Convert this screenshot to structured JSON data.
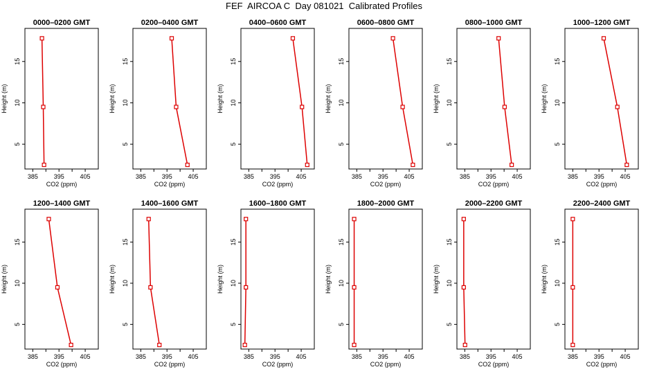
{
  "title": "FEF  AIRCOA C  Day 081021  Calibrated Profiles",
  "colors": {
    "series": "#dd0000",
    "axis": "#000000"
  },
  "chart_data": [
    {
      "type": "line",
      "title": "0000–0200 GMT",
      "xlabel": "CO2 (ppm)",
      "ylabel": "Height (m)",
      "xlim": [
        382,
        410
      ],
      "ylim": [
        2,
        19
      ],
      "xticks": [
        385,
        395,
        405
      ],
      "yticks": [
        5,
        10,
        15
      ],
      "x": [
        388.5,
        389.0,
        389.3
      ],
      "y": [
        17.8,
        9.5,
        2.5
      ]
    },
    {
      "type": "line",
      "title": "0200–0400 GMT",
      "xlabel": "CO2 (ppm)",
      "ylabel": "Height (m)",
      "xlim": [
        382,
        410
      ],
      "ylim": [
        2,
        19
      ],
      "xticks": [
        385,
        395,
        405
      ],
      "yticks": [
        5,
        10,
        15
      ],
      "x": [
        396.8,
        398.5,
        402.8
      ],
      "y": [
        17.8,
        9.5,
        2.5
      ]
    },
    {
      "type": "line",
      "title": "0400–0600 GMT",
      "xlabel": "CO2 (ppm)",
      "ylabel": "Height (m)",
      "xlim": [
        382,
        410
      ],
      "ylim": [
        2,
        19
      ],
      "xticks": [
        385,
        395,
        405
      ],
      "yticks": [
        5,
        10,
        15
      ],
      "x": [
        401.8,
        405.3,
        407.3
      ],
      "y": [
        17.8,
        9.5,
        2.5
      ]
    },
    {
      "type": "line",
      "title": "0600–0800 GMT",
      "xlabel": "CO2 (ppm)",
      "ylabel": "Height (m)",
      "xlim": [
        382,
        410
      ],
      "ylim": [
        2,
        19
      ],
      "xticks": [
        385,
        395,
        405
      ],
      "yticks": [
        5,
        10,
        15
      ],
      "x": [
        398.8,
        402.5,
        406.4
      ],
      "y": [
        17.8,
        9.5,
        2.5
      ]
    },
    {
      "type": "line",
      "title": "0800–1000 GMT",
      "xlabel": "CO2 (ppm)",
      "ylabel": "Height (m)",
      "xlim": [
        382,
        410
      ],
      "ylim": [
        2,
        19
      ],
      "xticks": [
        385,
        395,
        405
      ],
      "yticks": [
        5,
        10,
        15
      ],
      "x": [
        397.9,
        400.2,
        402.9
      ],
      "y": [
        17.8,
        9.5,
        2.5
      ]
    },
    {
      "type": "line",
      "title": "1000–1200 GMT",
      "xlabel": "CO2 (ppm)",
      "ylabel": "Height (m)",
      "xlim": [
        382,
        410
      ],
      "ylim": [
        2,
        19
      ],
      "xticks": [
        385,
        395,
        405
      ],
      "yticks": [
        5,
        10,
        15
      ],
      "x": [
        396.8,
        402.0,
        405.6
      ],
      "y": [
        17.8,
        9.5,
        2.5
      ]
    },
    {
      "type": "line",
      "title": "1200–1400 GMT",
      "xlabel": "CO2 (ppm)",
      "ylabel": "Height (m)",
      "xlim": [
        382,
        410
      ],
      "ylim": [
        2,
        19
      ],
      "xticks": [
        385,
        395,
        405
      ],
      "yticks": [
        5,
        10,
        15
      ],
      "x": [
        391.1,
        394.4,
        399.6
      ],
      "y": [
        17.8,
        9.5,
        2.5
      ]
    },
    {
      "type": "line",
      "title": "1400–1600 GMT",
      "xlabel": "CO2 (ppm)",
      "ylabel": "Height (m)",
      "xlim": [
        382,
        410
      ],
      "ylim": [
        2,
        19
      ],
      "xticks": [
        385,
        395,
        405
      ],
      "yticks": [
        5,
        10,
        15
      ],
      "x": [
        388.0,
        388.7,
        392.1
      ],
      "y": [
        17.8,
        9.5,
        2.5
      ]
    },
    {
      "type": "line",
      "title": "1600–1800 GMT",
      "xlabel": "CO2 (ppm)",
      "ylabel": "Height (m)",
      "xlim": [
        382,
        410
      ],
      "ylim": [
        2,
        19
      ],
      "xticks": [
        385,
        395,
        405
      ],
      "yticks": [
        5,
        10,
        15
      ],
      "x": [
        383.9,
        383.9,
        383.5
      ],
      "y": [
        17.8,
        9.5,
        2.5
      ]
    },
    {
      "type": "line",
      "title": "1800–2000 GMT",
      "xlabel": "CO2 (ppm)",
      "ylabel": "Height (m)",
      "xlim": [
        382,
        410
      ],
      "ylim": [
        2,
        19
      ],
      "xticks": [
        385,
        395,
        405
      ],
      "yticks": [
        5,
        10,
        15
      ],
      "x": [
        384.0,
        384.0,
        384.0
      ],
      "y": [
        17.8,
        9.5,
        2.5
      ]
    },
    {
      "type": "line",
      "title": "2000–2200 GMT",
      "xlabel": "CO2 (ppm)",
      "ylabel": "Height (m)",
      "xlim": [
        382,
        410
      ],
      "ylim": [
        2,
        19
      ],
      "xticks": [
        385,
        395,
        405
      ],
      "yticks": [
        5,
        10,
        15
      ],
      "x": [
        384.6,
        384.6,
        385.1
      ],
      "y": [
        17.8,
        9.5,
        2.5
      ]
    },
    {
      "type": "line",
      "title": "2200–2400 GMT",
      "xlabel": "CO2 (ppm)",
      "ylabel": "Height (m)",
      "xlim": [
        382,
        410
      ],
      "ylim": [
        2,
        19
      ],
      "xticks": [
        385,
        395,
        405
      ],
      "yticks": [
        5,
        10,
        15
      ],
      "x": [
        385.0,
        385.0,
        385.0
      ],
      "y": [
        17.8,
        9.5,
        2.5
      ]
    }
  ]
}
